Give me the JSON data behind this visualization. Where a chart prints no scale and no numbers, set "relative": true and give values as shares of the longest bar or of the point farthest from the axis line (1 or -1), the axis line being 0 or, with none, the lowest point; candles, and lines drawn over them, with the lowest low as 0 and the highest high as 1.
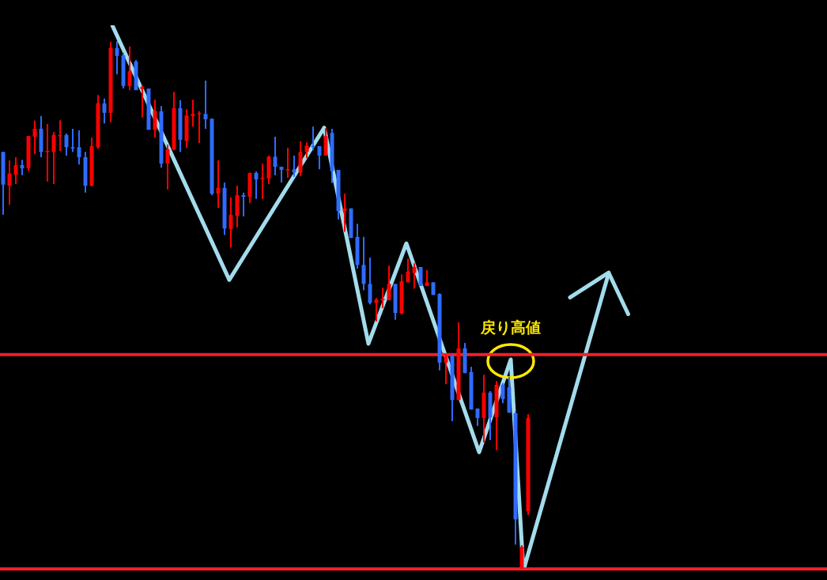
{
  "chart_data": [
    {
      "type": "candlestick",
      "relative": true,
      "categories": [
        null,
        null,
        null,
        null,
        null,
        null,
        null,
        null,
        null,
        null,
        null,
        null,
        null,
        null,
        null,
        null,
        null,
        null,
        null,
        null,
        null,
        null,
        null,
        null,
        null,
        null,
        null,
        null,
        null,
        null,
        null,
        null,
        null,
        null,
        null,
        null,
        null,
        null,
        null,
        null,
        null,
        null,
        null,
        null,
        null,
        null,
        null,
        null,
        null,
        null,
        null,
        null,
        null,
        null,
        null,
        null,
        null,
        null,
        null,
        null,
        null,
        null,
        null,
        null,
        null,
        null,
        null,
        null,
        null,
        null,
        null,
        null,
        null,
        null,
        null,
        null,
        null,
        null,
        null,
        null,
        null,
        null,
        null,
        null
      ],
      "ohlc": [
        [
          0.79,
          0.79,
          0.671,
          0.728
        ],
        [
          0.726,
          0.774,
          0.69,
          0.749
        ],
        [
          0.747,
          0.78,
          0.729,
          0.765
        ],
        [
          0.765,
          0.775,
          0.746,
          0.759
        ],
        [
          0.759,
          0.82,
          0.754,
          0.82
        ],
        [
          0.819,
          0.849,
          0.786,
          0.834
        ],
        [
          0.834,
          0.858,
          0.78,
          0.79
        ],
        [
          0.79,
          0.843,
          0.734,
          0.792
        ],
        [
          0.79,
          0.828,
          0.729,
          0.822
        ],
        [
          0.82,
          0.85,
          0.792,
          0.822
        ],
        [
          0.822,
          0.825,
          0.783,
          0.799
        ],
        [
          0.799,
          0.834,
          0.79,
          0.798
        ],
        [
          0.799,
          0.831,
          0.766,
          0.78
        ],
        [
          0.78,
          0.79,
          0.713,
          0.726
        ],
        [
          0.726,
          0.817,
          0.725,
          0.801
        ],
        [
          0.799,
          0.898,
          0.796,
          0.882
        ],
        [
          0.882,
          0.891,
          0.844,
          0.864
        ],
        [
          0.864,
          0.999,
          0.846,
          0.987
        ],
        [
          0.987,
          1,
          0.937,
          0.972
        ],
        [
          0.973,
          0.978,
          0.91,
          0.915
        ],
        [
          0.915,
          0.99,
          0.907,
          0.943
        ],
        [
          0.961,
          0.964,
          0.907,
          0.907
        ],
        [
          0.909,
          0.916,
          0.855,
          0.913
        ],
        [
          0.91,
          0.91,
          0.832,
          0.832
        ],
        [
          0.832,
          0.889,
          0.817,
          0.868
        ],
        [
          0.867,
          0.877,
          0.76,
          0.768
        ],
        [
          0.768,
          0.804,
          0.719,
          0.795
        ],
        [
          0.795,
          0.904,
          0.793,
          0.873
        ],
        [
          0.873,
          0.888,
          0.79,
          0.813
        ],
        [
          0.811,
          0.871,
          0.798,
          0.859
        ],
        [
          0.858,
          0.889,
          0.838,
          0.862
        ],
        [
          0.862,
          0.867,
          0.807,
          0.864
        ],
        [
          0.862,
          0.925,
          0.834,
          0.852
        ],
        [
          0.853,
          0.853,
          0.708,
          0.711
        ],
        [
          0.711,
          0.774,
          0.684,
          0.722
        ],
        [
          0.722,
          0.732,
          0.633,
          0.645
        ],
        [
          0.644,
          0.704,
          0.609,
          0.671
        ],
        [
          0.669,
          0.726,
          0.647,
          0.708
        ],
        [
          0.708,
          0.713,
          0.668,
          0.705
        ],
        [
          0.705,
          0.751,
          0.693,
          0.75
        ],
        [
          0.75,
          0.753,
          0.701,
          0.738
        ],
        [
          0.74,
          0.768,
          0.701,
          0.741
        ],
        [
          0.74,
          0.783,
          0.729,
          0.781
        ],
        [
          0.781,
          0.819,
          0.746,
          0.762
        ],
        [
          0.762,
          0.762,
          0.732,
          0.756
        ],
        [
          0.756,
          0.798,
          0.741,
          0.757
        ],
        [
          0.757,
          0.783,
          0.743,
          0.751
        ],
        [
          0.751,
          0.81,
          0.744,
          0.79
        ],
        [
          0.79,
          0.808,
          0.778,
          0.802
        ],
        [
          0.802,
          0.838,
          0.793,
          0.799
        ],
        [
          0.801,
          0.801,
          0.757,
          0.783
        ],
        [
          0.783,
          0.835,
          0.783,
          0.82
        ],
        [
          0.826,
          0.834,
          0.731,
          0.754
        ],
        [
          0.756,
          0.756,
          0.662,
          0.678
        ],
        [
          0.678,
          0.711,
          0.639,
          0.683
        ],
        [
          0.683,
          0.683,
          0.627,
          0.627
        ],
        [
          0.629,
          0.654,
          0.569,
          0.576
        ],
        [
          0.576,
          0.629,
          0.528,
          0.54
        ],
        [
          0.54,
          0.59,
          0.501,
          0.504
        ],
        [
          0.504,
          0.513,
          0.469,
          0.51
        ],
        [
          0.509,
          0.533,
          0.494,
          0.512
        ],
        [
          0.509,
          0.575,
          0.509,
          0.54
        ],
        [
          0.54,
          0.54,
          0.472,
          0.485
        ],
        [
          0.484,
          0.558,
          0.482,
          0.545
        ],
        [
          0.543,
          0.588,
          0.543,
          0.563
        ],
        [
          0.561,
          0.579,
          0.531,
          0.572
        ],
        [
          0.572,
          0.572,
          0.536,
          0.536
        ],
        [
          0.536,
          0.566,
          0.536,
          0.543
        ],
        [
          0.543,
          0.543,
          0.519,
          0.519
        ],
        [
          0.521,
          0.522,
          0.376,
          0.391
        ],
        [
          0.391,
          0.406,
          0.35,
          0.403
        ],
        [
          0.404,
          0.406,
          0.28,
          0.32
        ],
        [
          0.32,
          0.467,
          0.32,
          0.418
        ],
        [
          0.418,
          0.428,
          0.371,
          0.371
        ],
        [
          0.373,
          0.383,
          0.302,
          0.302
        ],
        [
          0.304,
          0.304,
          0.271,
          0.286
        ],
        [
          0.286,
          0.368,
          0.24,
          0.334
        ],
        [
          0.334,
          0.337,
          0.244,
          0.287
        ],
        [
          0.287,
          0.356,
          0.225,
          0.349
        ],
        [
          0.349,
          0.352,
          0.314,
          0.322
        ],
        [
          0.344,
          0.364,
          0.296,
          0.296
        ],
        [
          0.295,
          0.299,
          0.046,
          0.094
        ],
        [
          0.003,
          0.045,
          0,
          0.042
        ],
        [
          0.109,
          0.293,
          0.102,
          0.286
        ]
      ],
      "colors": [
        "#2f6bff",
        "#ff0000",
        "#ff0000",
        "#2f6bff",
        "#ff0000",
        "#ff0000",
        "#2f6bff",
        "#ff0000",
        "#ff0000",
        "#ff0000",
        "#2f6bff",
        "#2f6bff",
        "#2f6bff",
        "#2f6bff",
        "#ff0000",
        "#ff0000",
        "#2f6bff",
        "#ff0000",
        "#2f6bff",
        "#2f6bff",
        "#ff0000",
        "#2f6bff",
        "#ff0000",
        "#2f6bff",
        "#ff0000",
        "#2f6bff",
        "#ff0000",
        "#ff0000",
        "#2f6bff",
        "#ff0000",
        "#ff0000",
        "#ff0000",
        "#2f6bff",
        "#2f6bff",
        "#ff0000",
        "#2f6bff",
        "#ff0000",
        "#ff0000",
        "#2f6bff",
        "#ff0000",
        "#2f6bff",
        "#ff0000",
        "#ff0000",
        "#2f6bff",
        "#2f6bff",
        "#ff0000",
        "#2f6bff",
        "#ff0000",
        "#ff0000",
        "#2f6bff",
        "#2f6bff",
        "#ff0000",
        "#2f6bff",
        "#2f6bff",
        "#ff0000",
        "#2f6bff",
        "#2f6bff",
        "#2f6bff",
        "#2f6bff",
        "#ff0000",
        "#ff0000",
        "#ff0000",
        "#2f6bff",
        "#ff0000",
        "#ff0000",
        "#ff0000",
        "#2f6bff",
        "#ff0000",
        "#2f6bff",
        "#2f6bff",
        "#ff0000",
        "#2f6bff",
        "#ff0000",
        "#2f6bff",
        "#2f6bff",
        "#2f6bff",
        "#ff0000",
        "#2f6bff",
        "#ff0000",
        "#2f6bff",
        "#2f6bff",
        "#2f6bff",
        "#ff0000",
        "#ff0000"
      ],
      "ref_lines": [
        {
          "axis": "y",
          "value": 0.406,
          "color": "#f0202a"
        },
        {
          "axis": "y",
          "value": 0,
          "color": "#f0202a"
        }
      ]
    },
    {
      "type": "line",
      "relative": true,
      "marker": "none",
      "categories": [
        null,
        null,
        null,
        null,
        null,
        null,
        null,
        null,
        null,
        null,
        null,
        null,
        null,
        null,
        null,
        null,
        null,
        null,
        null,
        null,
        null,
        null,
        null,
        null,
        null,
        null,
        null,
        null,
        null,
        null,
        null,
        null,
        null,
        null,
        null,
        null,
        null,
        null,
        null,
        null,
        null,
        null,
        null,
        null,
        null,
        null,
        null,
        null,
        null,
        null,
        null,
        null,
        null,
        null,
        null,
        null,
        null,
        null,
        null,
        null,
        null,
        null,
        null,
        null,
        null,
        null,
        null,
        null,
        null,
        null,
        null,
        null,
        null,
        null,
        null,
        null,
        null,
        null,
        null,
        null,
        null,
        null,
        null,
        null,
        null,
        null,
        null,
        null,
        null,
        null,
        null,
        null,
        null,
        null,
        null,
        null,
        null,
        null,
        null,
        null,
        null,
        null,
        null,
        null,
        null,
        null,
        null,
        null,
        null,
        null,
        null,
        null,
        null,
        null,
        null,
        null,
        null,
        null,
        null,
        null,
        null,
        null,
        null,
        null,
        null,
        null,
        null,
        null,
        null,
        null,
        null,
        null,
        null,
        null,
        null,
        null,
        null,
        null,
        null,
        null,
        null,
        null,
        null,
        null,
        null,
        null,
        null,
        null,
        null,
        null,
        null,
        null,
        null,
        null,
        null,
        null,
        null,
        null
      ],
      "series": [
        {
          "color": "#a3dcec",
          "values": [
            1,
            null,
            null,
            null,
            null,
            null,
            null,
            null,
            null,
            null,
            null,
            null,
            null,
            null,
            null,
            null,
            null,
            null,
            null,
            null,
            null,
            null,
            null,
            null,
            null,
            null,
            null,
            null,
            null,
            null,
            null,
            null,
            null,
            null,
            null,
            null,
            null,
            0.533,
            null,
            null,
            null,
            null,
            null,
            null,
            null,
            null,
            null,
            null,
            null,
            null,
            null,
            null,
            null,
            null,
            null,
            null,
            null,
            null,
            null,
            null,
            null,
            null,
            null,
            null,
            null,
            null,
            null,
            0.812,
            null,
            null,
            null,
            null,
            null,
            null,
            null,
            null,
            null,
            null,
            null,
            null,
            null,
            0.416,
            null,
            null,
            null,
            null,
            null,
            null,
            null,
            null,
            null,
            null,
            null,
            0.6,
            null,
            null,
            null,
            null,
            null,
            null,
            null,
            null,
            null,
            null,
            null,
            null,
            null,
            null,
            null,
            null,
            null,
            null,
            null,
            null,
            null,
            null,
            0.217,
            null,
            null,
            null,
            null,
            null,
            null,
            null,
            null,
            null,
            0.387,
            null,
            null,
            null,
            0,
            null,
            null,
            null,
            null,
            null,
            null,
            null,
            null,
            null,
            null,
            null,
            null,
            null,
            null,
            null,
            null,
            null,
            null,
            null,
            null,
            null,
            null,
            null,
            null,
            null,
            null,
            0.546
          ]
        }
      ],
      "annotations": [
        {
          "text": "戻り高値",
          "y": 0.387
        }
      ]
    }
  ]
}
